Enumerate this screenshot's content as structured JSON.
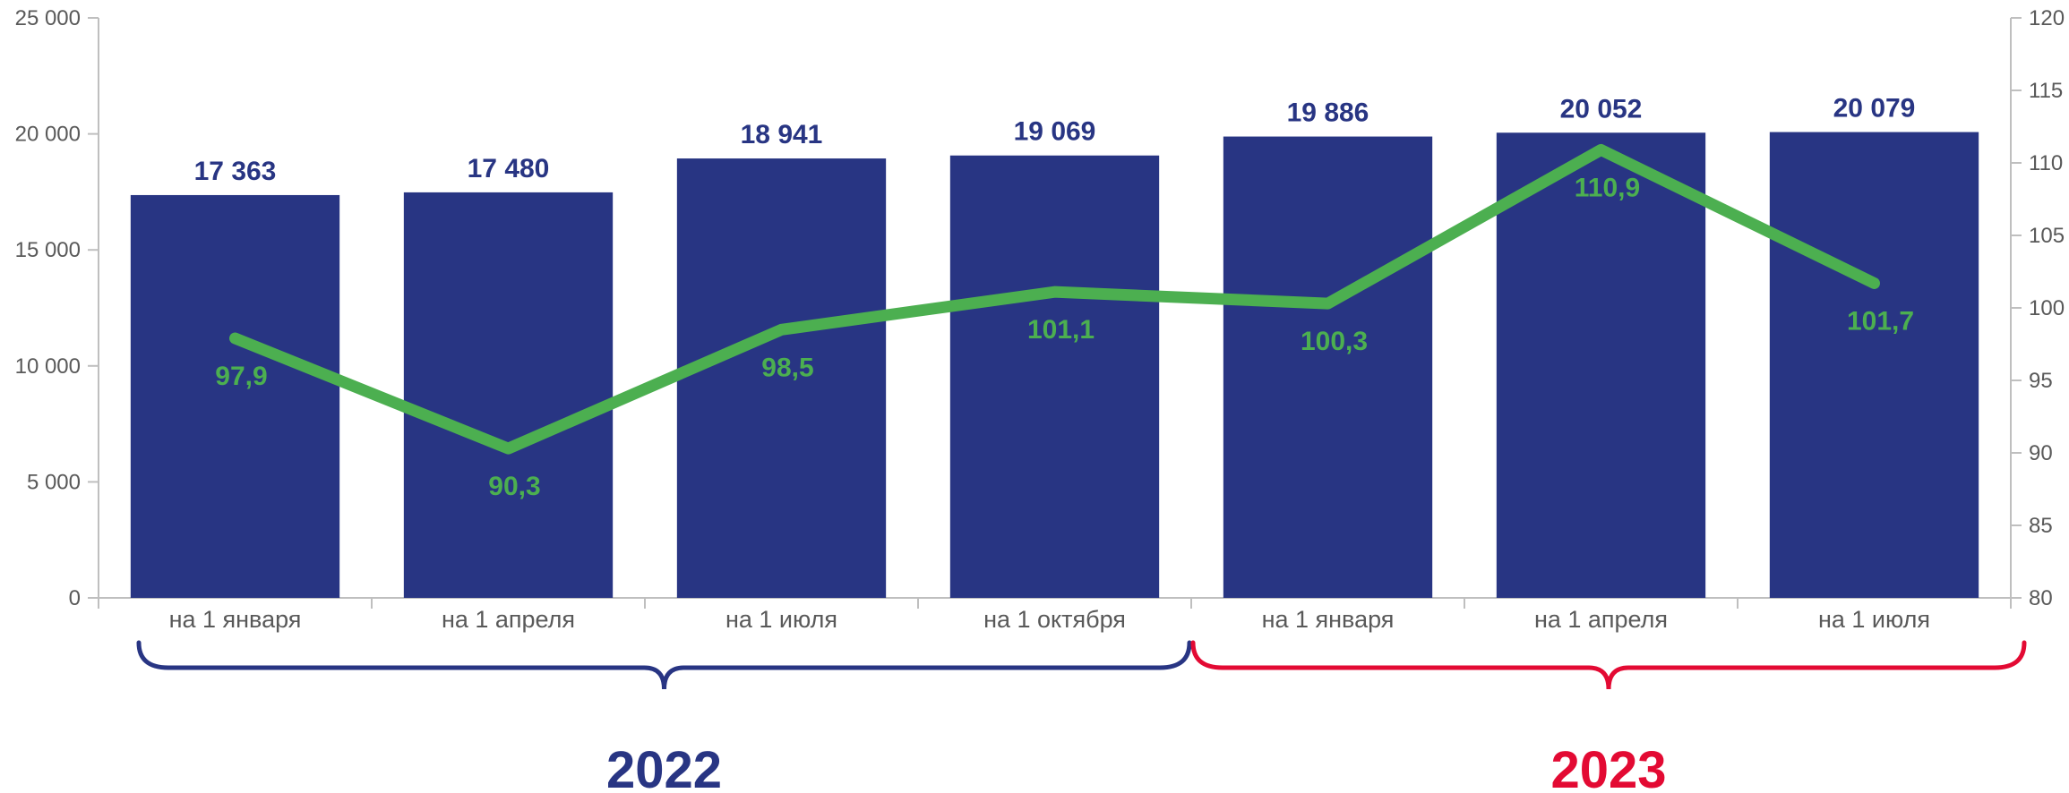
{
  "chart_data": {
    "type": "bar",
    "categories": [
      "на 1 января",
      "на 1 апреля",
      "на 1 июля",
      "на 1 октября",
      "на 1 января",
      "на 1 апреля",
      "на 1 июля"
    ],
    "series": [
      {
        "type": "bar",
        "axis": "left",
        "values": [
          17363,
          17480,
          18941,
          19069,
          19886,
          20052,
          20079
        ],
        "labels": [
          "17 363",
          "17 480",
          "18 941",
          "19 069",
          "19 886",
          "20 052",
          "20 079"
        ]
      },
      {
        "type": "line",
        "axis": "right",
        "values": [
          97.9,
          90.3,
          98.5,
          101.1,
          100.3,
          110.9,
          101.7
        ],
        "labels": [
          "97,9",
          "90,3",
          "98,5",
          "101,1",
          "100,3",
          "110,9",
          "101,7"
        ]
      }
    ],
    "left_axis": {
      "min": 0,
      "max": 25000,
      "ticks": [
        0,
        5000,
        10000,
        15000,
        20000,
        25000
      ],
      "tick_labels": [
        "0",
        "5 000",
        "10 000",
        "15 000",
        "20 000",
        "25 000"
      ]
    },
    "right_axis": {
      "min": 80,
      "max": 120,
      "ticks": [
        80,
        85,
        90,
        95,
        100,
        105,
        110,
        115,
        120
      ],
      "tick_labels": [
        "80",
        "85",
        "90",
        "95",
        "100",
        "105",
        "110",
        "115",
        "120"
      ]
    },
    "groups": [
      {
        "label": "2022",
        "from": 0,
        "to": 3,
        "color": "#283583"
      },
      {
        "label": "2023",
        "from": 4,
        "to": 6,
        "color": "#e30a33"
      }
    ],
    "colors": {
      "bar": "#283583",
      "line": "#4caf50",
      "axis": "#bfbfbf",
      "tick_text": "#595959"
    },
    "grid": false,
    "legend": "none"
  }
}
